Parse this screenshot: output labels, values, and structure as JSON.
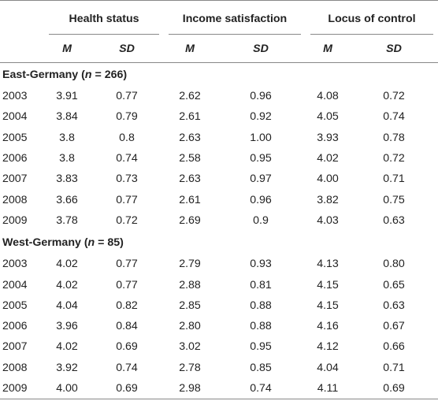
{
  "header": {
    "groups": [
      "Health status",
      "Income satisfaction",
      "Locus of control"
    ],
    "sub_labels": [
      "M",
      "SD",
      "M",
      "SD",
      "M",
      "SD"
    ]
  },
  "sections": [
    {
      "title_prefix": "East-Germany (",
      "n_label": "n",
      "title_suffix": " = 266)",
      "rows": [
        {
          "year": "2003",
          "values": [
            "3.91",
            "0.77",
            "2.62",
            "0.96",
            "4.08",
            "0.72"
          ]
        },
        {
          "year": "2004",
          "values": [
            "3.84",
            "0.79",
            "2.61",
            "0.92",
            "4.05",
            "0.74"
          ]
        },
        {
          "year": "2005",
          "values": [
            "3.8",
            "0.8",
            "2.63",
            "1.00",
            "3.93",
            "0.78"
          ]
        },
        {
          "year": "2006",
          "values": [
            "3.8",
            "0.74",
            "2.58",
            "0.95",
            "4.02",
            "0.72"
          ]
        },
        {
          "year": "2007",
          "values": [
            "3.83",
            "0.73",
            "2.63",
            "0.97",
            "4.00",
            "0.71"
          ]
        },
        {
          "year": "2008",
          "values": [
            "3.66",
            "0.77",
            "2.61",
            "0.96",
            "3.82",
            "0.75"
          ]
        },
        {
          "year": "2009",
          "values": [
            "3.78",
            "0.72",
            "2.69",
            "0.9",
            "4.03",
            "0.63"
          ]
        }
      ]
    },
    {
      "title_prefix": "West-Germany (",
      "n_label": "n",
      "title_suffix": " = 85)",
      "rows": [
        {
          "year": "2003",
          "values": [
            "4.02",
            "0.77",
            "2.79",
            "0.93",
            "4.13",
            "0.80"
          ]
        },
        {
          "year": "2004",
          "values": [
            "4.02",
            "0.77",
            "2.88",
            "0.81",
            "4.15",
            "0.65"
          ]
        },
        {
          "year": "2005",
          "values": [
            "4.04",
            "0.82",
            "2.85",
            "0.88",
            "4.15",
            "0.63"
          ]
        },
        {
          "year": "2006",
          "values": [
            "3.96",
            "0.84",
            "2.80",
            "0.88",
            "4.16",
            "0.67"
          ]
        },
        {
          "year": "2007",
          "values": [
            "4.02",
            "0.69",
            "3.02",
            "0.95",
            "4.12",
            "0.66"
          ]
        },
        {
          "year": "2008",
          "values": [
            "3.92",
            "0.74",
            "2.78",
            "0.85",
            "4.04",
            "0.71"
          ]
        },
        {
          "year": "2009",
          "values": [
            "4.00",
            "0.69",
            "2.98",
            "0.74",
            "4.11",
            "0.69"
          ]
        }
      ]
    }
  ]
}
